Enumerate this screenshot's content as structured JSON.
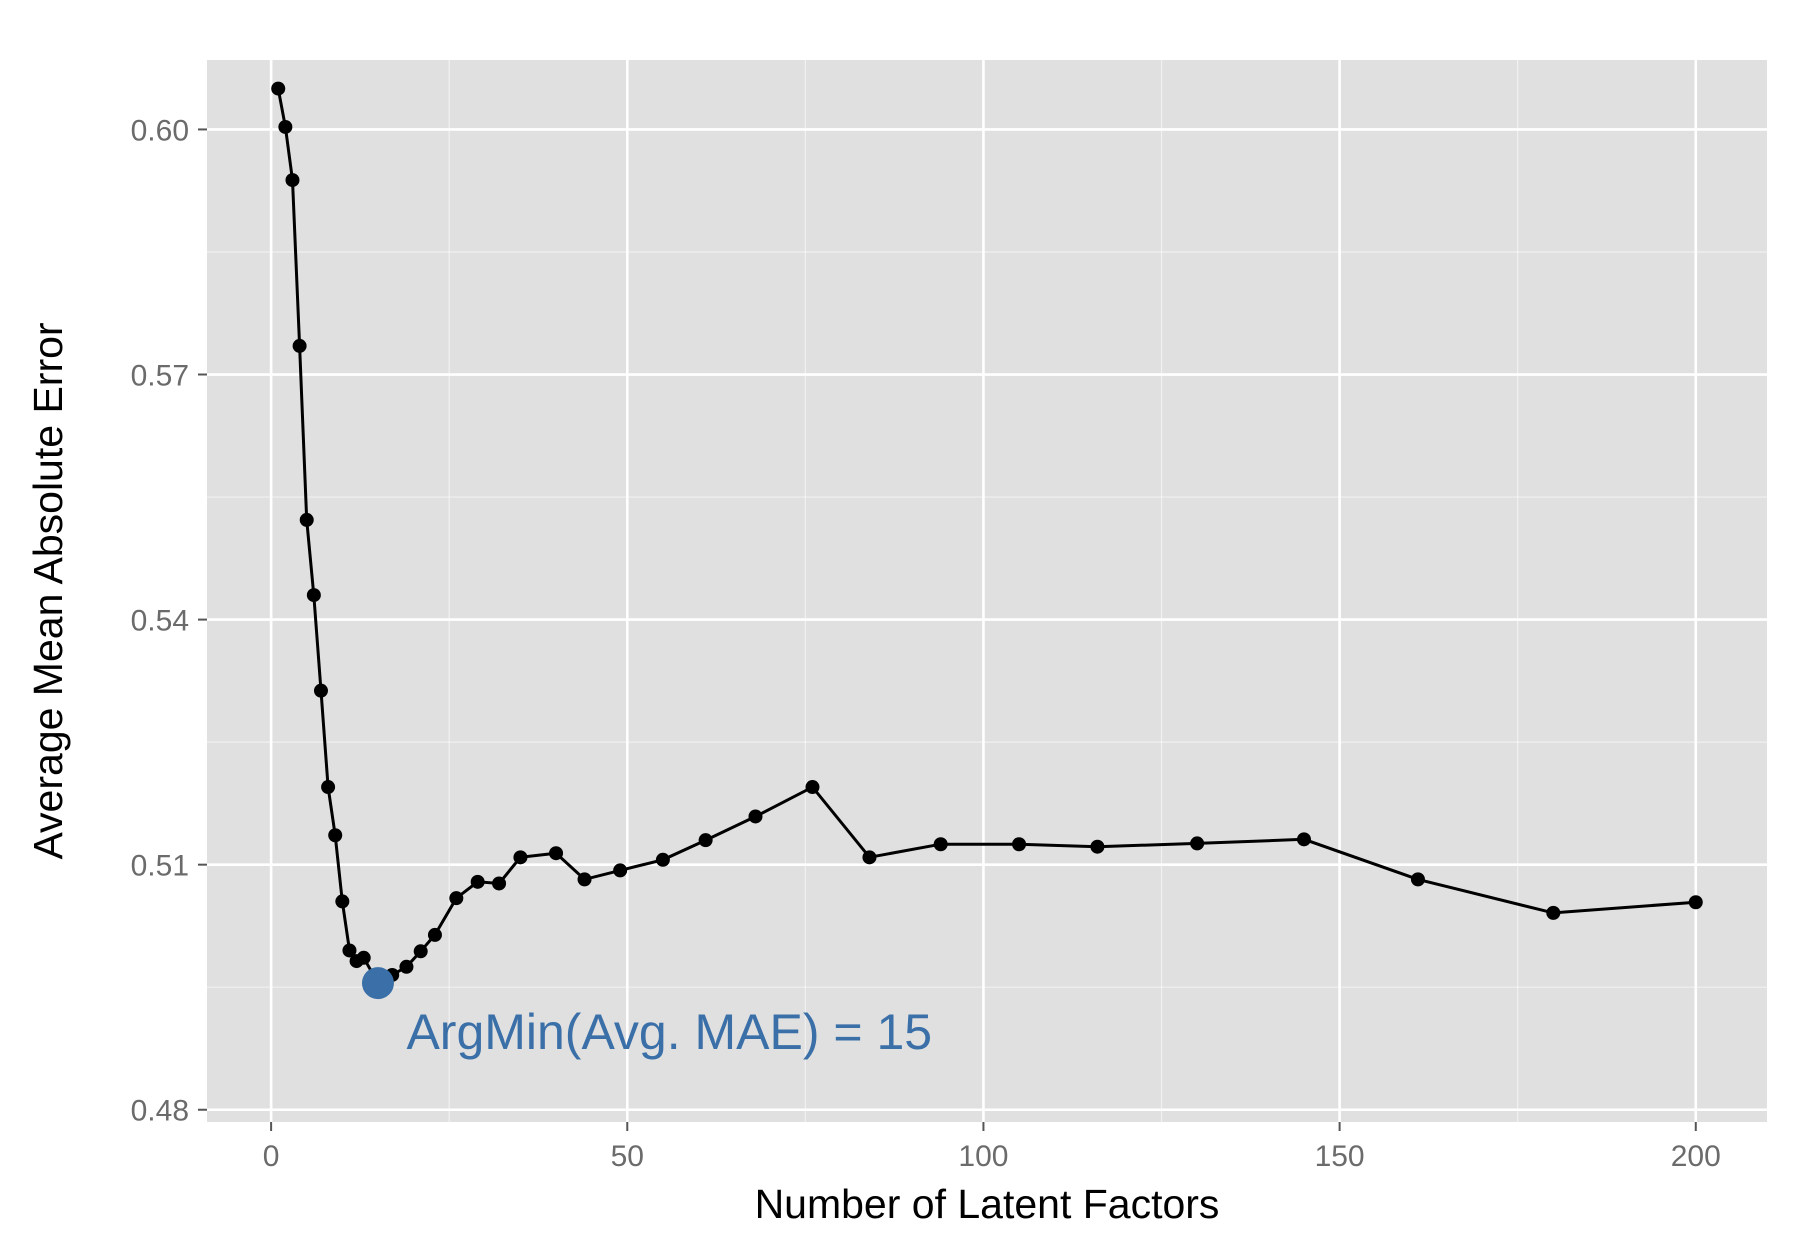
{
  "chart_data": {
    "type": "line",
    "title": "",
    "xlabel": "Number of Latent Factors",
    "ylabel": "Average Mean Absolute Error",
    "xlim": [
      -9,
      210
    ],
    "ylim": [
      0.4785,
      0.6085
    ],
    "x_ticks": [
      0,
      50,
      100,
      150,
      200
    ],
    "x_tick_labels": [
      "0",
      "50",
      "100",
      "150",
      "200"
    ],
    "y_ticks": [
      0.48,
      0.51,
      0.54,
      0.57,
      0.6
    ],
    "y_tick_labels": [
      "0.48",
      "0.51",
      "0.54",
      "0.57",
      "0.60"
    ],
    "x_minor_ticks": [
      25,
      75,
      125,
      175
    ],
    "y_minor_ticks": [
      0.495,
      0.525,
      0.555,
      0.585
    ],
    "grid": true,
    "background_color": "#e0e0e0",
    "grid_color": "#ffffff",
    "line_color": "#000000",
    "highlight_color": "#3a6fa8",
    "series": [
      {
        "x": [
          1,
          2,
          3,
          4,
          5,
          6,
          7,
          8,
          9,
          10,
          11,
          12,
          13,
          15,
          17,
          19,
          21,
          23,
          26,
          29,
          32,
          35,
          40,
          44,
          49,
          55,
          61,
          68,
          76,
          84,
          94,
          105,
          116,
          130,
          145,
          161,
          180,
          200
        ],
        "values": [
          0.605,
          0.6003,
          0.5938,
          0.5735,
          0.5522,
          0.543,
          0.5313,
          0.5195,
          0.5136,
          0.5055,
          0.4995,
          0.4982,
          0.4986,
          0.4955,
          0.4965,
          0.4975,
          0.4994,
          0.5014,
          0.5059,
          0.5079,
          0.5077,
          0.5109,
          0.5114,
          0.5082,
          0.5093,
          0.5106,
          0.513,
          0.5159,
          0.5195,
          0.5109,
          0.5125,
          0.5125,
          0.5122,
          0.5126,
          0.5131,
          0.5082,
          0.5041,
          0.5054
        ]
      }
    ],
    "highlight_point": {
      "x": 15,
      "y": 0.4955
    },
    "annotation": {
      "text": "ArgMin(Avg. MAE) = 15",
      "x": 19,
      "y": 0.4895
    }
  }
}
